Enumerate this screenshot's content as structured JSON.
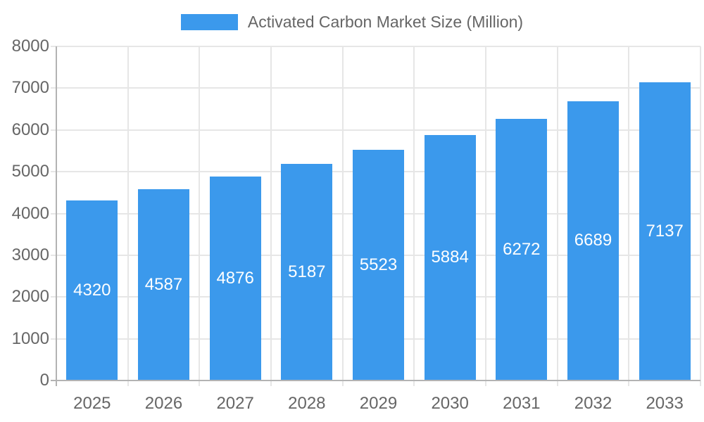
{
  "colors": {
    "bar": "#3b99ec",
    "grid_light": "#e6e6e6",
    "axis_line": "#b3b3b3",
    "tick_text": "#666666",
    "value_label_text": "#ffffff",
    "legend_text": "#666666"
  },
  "legend": {
    "label": "Activated Carbon Market Size (Million)"
  },
  "chart_data": {
    "type": "bar",
    "title": "Activated Carbon Market Size (Million)",
    "series_name": "Activated Carbon Market Size (Million)",
    "categories": [
      "2025",
      "2026",
      "2027",
      "2028",
      "2029",
      "2030",
      "2031",
      "2032",
      "2033"
    ],
    "values": [
      4320,
      4587,
      4876,
      5187,
      5523,
      5884,
      6272,
      6689,
      7137
    ],
    "xlabel": "",
    "ylabel": "",
    "ylim": [
      0,
      8000
    ],
    "ytick_step": 1000,
    "yticks": [
      0,
      1000,
      2000,
      3000,
      4000,
      5000,
      6000,
      7000,
      8000
    ],
    "grid": true,
    "legend_position": "top",
    "value_label_position": "inside-center"
  }
}
